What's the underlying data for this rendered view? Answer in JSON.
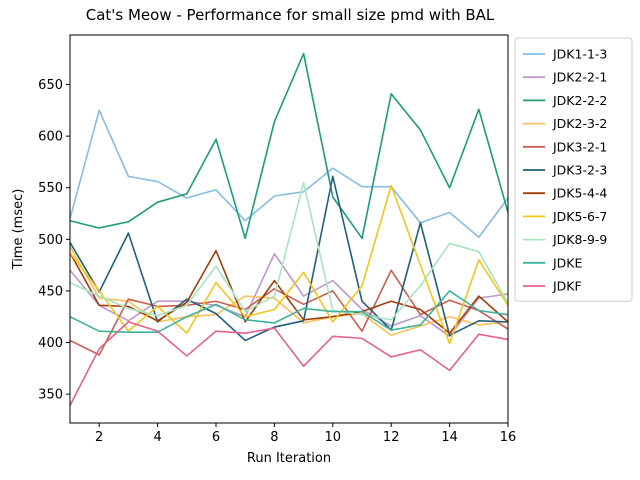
{
  "chart_data": {
    "type": "line",
    "title": "Cat's Meow - Performance for small size pmd with BAL",
    "xlabel": "Run Iteration",
    "ylabel": "Time (msec)",
    "xlim": [
      1,
      16
    ],
    "ylim": [
      322,
      698
    ],
    "x_ticks": [
      2,
      4,
      6,
      8,
      10,
      12,
      14,
      16
    ],
    "y_ticks": [
      350,
      400,
      450,
      500,
      550,
      600,
      650
    ],
    "legend_position": "outside-right",
    "grid": false,
    "x": [
      1,
      2,
      3,
      4,
      5,
      6,
      7,
      8,
      9,
      10,
      11,
      12,
      13,
      14,
      15,
      16
    ],
    "series": [
      {
        "name": "JDK1-1-3",
        "color": "#88bde6",
        "values": [
          520,
          625,
          561,
          556,
          540,
          548,
          518,
          542,
          546,
          569,
          551,
          551,
          516,
          526,
          502,
          540
        ]
      },
      {
        "name": "JDK2-2-1",
        "color": "#bc99c7",
        "values": [
          470,
          436,
          421,
          440,
          440,
          436,
          425,
          486,
          445,
          460,
          432,
          416,
          426,
          406,
          443,
          447
        ]
      },
      {
        "name": "JDK2-2-2",
        "color": "#1b9e77",
        "values": [
          518,
          511,
          517,
          536,
          544,
          597,
          501,
          614,
          680,
          541,
          501,
          641,
          606,
          550,
          626,
          526
        ]
      },
      {
        "name": "JDK2-3-2",
        "color": "#fbbf5d",
        "values": [
          493,
          443,
          440,
          420,
          425,
          427,
          445,
          443,
          419,
          425,
          428,
          407,
          416,
          425,
          417,
          420
        ]
      },
      {
        "name": "JDK3-2-1",
        "color": "#c95f4f",
        "values": [
          402,
          388,
          442,
          435,
          436,
          440,
          432,
          452,
          437,
          450,
          411,
          470,
          427,
          441,
          431,
          413
        ]
      },
      {
        "name": "JDK3-2-3",
        "color": "#1f5f7f",
        "values": [
          497,
          449,
          506,
          420,
          442,
          428,
          402,
          415,
          421,
          561,
          440,
          412,
          516,
          407,
          421,
          420
        ]
      },
      {
        "name": "JDK5-4-4",
        "color": "#a13d0b",
        "values": [
          487,
          436,
          435,
          421,
          439,
          489,
          420,
          460,
          422,
          425,
          430,
          440,
          432,
          409,
          445,
          420
        ]
      },
      {
        "name": "JDK5-6-7",
        "color": "#f5c518",
        "values": [
          487,
          450,
          411,
          435,
          409,
          458,
          425,
          432,
          468,
          420,
          455,
          552,
          475,
          399,
          480,
          436
        ]
      },
      {
        "name": "JDK8-9-9",
        "color": "#a8e5c0",
        "values": [
          458,
          445,
          433,
          426,
          436,
          474,
          430,
          445,
          555,
          431,
          427,
          422,
          455,
          496,
          488,
          438
        ]
      },
      {
        "name": "JDKE",
        "color": "#3cb39d",
        "values": [
          425,
          411,
          410,
          410,
          425,
          437,
          422,
          419,
          433,
          430,
          430,
          412,
          417,
          450,
          431,
          427
        ]
      },
      {
        "name": "JDKF",
        "color": "#e8608c",
        "values": [
          339,
          394,
          420,
          411,
          387,
          411,
          409,
          414,
          377,
          406,
          404,
          386,
          393,
          373,
          408,
          403
        ]
      }
    ]
  }
}
